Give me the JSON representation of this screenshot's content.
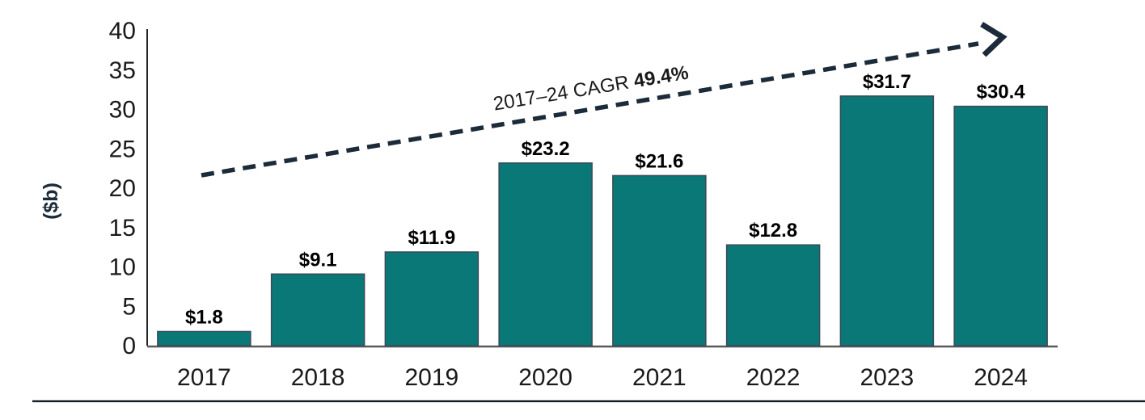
{
  "chart_data": {
    "type": "bar",
    "title": "",
    "xlabel": "",
    "ylabel": "($b)",
    "categories": [
      "2017",
      "2018",
      "2019",
      "2020",
      "2021",
      "2022",
      "2023",
      "2024"
    ],
    "values": [
      1.8,
      9.1,
      11.9,
      23.2,
      21.6,
      12.8,
      31.7,
      30.4
    ],
    "value_labels": [
      "$1.8",
      "$9.1",
      "$11.9",
      "$23.2",
      "$21.6",
      "$12.8",
      "$31.7",
      "$30.4"
    ],
    "ylim": [
      0,
      40
    ],
    "yticks": [
      0,
      5,
      10,
      15,
      20,
      25,
      30,
      35,
      40
    ],
    "grid": false,
    "legend_position": "none",
    "annotation": {
      "prefix": "2017–24 CAGR ",
      "bold_value": "49.4%"
    },
    "colors": {
      "bar_fill": "#0a7876",
      "bar_stroke": "#3a4a58",
      "axis_line": "#262626",
      "baseline": "#595959",
      "navy": "#1c2b3a",
      "text": "#1a1a1a",
      "value_label": "#000000",
      "bottom_rule": "#141e28"
    }
  }
}
